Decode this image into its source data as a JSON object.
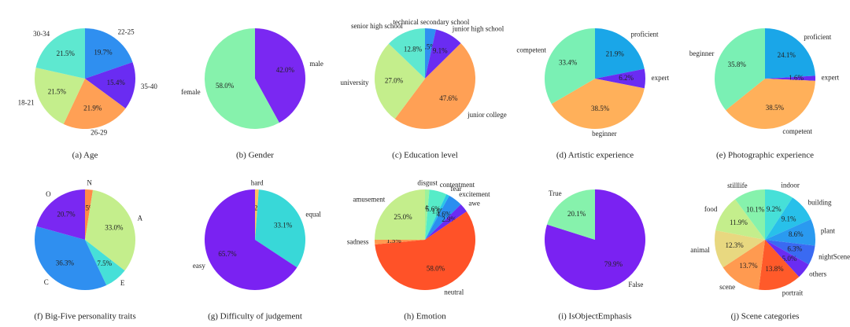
{
  "chart_data": [
    {
      "type": "pie",
      "title": "(a) Age",
      "categories": [
        "22-25",
        "35-40",
        "26-29",
        "18-21",
        "30-34"
      ],
      "values": [
        19.7,
        15.4,
        21.9,
        21.5,
        21.5
      ],
      "value_labels": [
        "19.7%",
        "15.4%",
        "21.9%",
        "21.5%",
        "21.5%"
      ],
      "colors": [
        "#2f8ff0",
        "#6a2cf2",
        "#ffa055",
        "#c4ee8c",
        "#5ee8d0"
      ]
    },
    {
      "type": "pie",
      "title": "(b) Gender",
      "categories": [
        "male",
        "female"
      ],
      "values": [
        42.0,
        58.0
      ],
      "value_labels": [
        "42.0%",
        "58.0%"
      ],
      "colors": [
        "#7a28f2",
        "#86f2ac"
      ]
    },
    {
      "type": "pie",
      "title": "(c) Education level",
      "categories": [
        "technical secondary school",
        "junior high school",
        "junior college",
        "university",
        "senior high school"
      ],
      "values": [
        3.5,
        9.1,
        47.6,
        27.0,
        12.8
      ],
      "value_labels": [
        "3.5%",
        "9.1%",
        "47.6%",
        "27.0%",
        "12.8%"
      ],
      "colors": [
        "#2f8ff0",
        "#6a2cf2",
        "#ffa055",
        "#c4ee8c",
        "#5ee8d0"
      ]
    },
    {
      "type": "pie",
      "title": "(d) Artistic experience",
      "categories": [
        "proficient",
        "expert",
        "beginner",
        "competent"
      ],
      "values": [
        21.9,
        6.2,
        38.5,
        33.4
      ],
      "value_labels": [
        "21.9%",
        "6.2%",
        "38.5%",
        "33.4%"
      ],
      "colors": [
        "#1aa6e8",
        "#6a2cf2",
        "#ffb05a",
        "#7af0b4"
      ]
    },
    {
      "type": "pie",
      "title": "(e) Photographic experience",
      "categories": [
        "proficient",
        "expert",
        "competent",
        "beginner"
      ],
      "values": [
        24.1,
        1.6,
        38.5,
        35.8
      ],
      "value_labels": [
        "24.1%",
        "1.6%",
        "38.5%",
        "35.8%"
      ],
      "colors": [
        "#1aa6e8",
        "#6a2cf2",
        "#ffb05a",
        "#7af0b4"
      ]
    },
    {
      "type": "pie",
      "title": "(f) Big-Five personality traits",
      "categories": [
        "N",
        "A",
        "E",
        "C",
        "O"
      ],
      "values": [
        2.5,
        33.0,
        7.5,
        36.3,
        20.7
      ],
      "value_labels": [
        "2.5%",
        "33.0%",
        "7.5%",
        "36.3%",
        "20.7%"
      ],
      "colors": [
        "#ff8a48",
        "#c4ee8c",
        "#46e0d8",
        "#2f8ff0",
        "#7a28f2"
      ]
    },
    {
      "type": "pie",
      "title": "(g) Difficulty of judgement",
      "categories": [
        "hard",
        "equal",
        "easy"
      ],
      "values": [
        1.2,
        33.1,
        65.7
      ],
      "value_labels": [
        "1.2%",
        "33.1%",
        "65.7%"
      ],
      "colors": [
        "#ffc060",
        "#38d8d8",
        "#7a22f2"
      ]
    },
    {
      "type": "pie",
      "title": "(h) Emotion",
      "categories": [
        "disgust",
        "contentment",
        "fear",
        "excitement",
        "awe",
        "neutral",
        "sadness",
        "amusement"
      ],
      "values": [
        1.4,
        5.6,
        1.0,
        4.6,
        2.9,
        58.0,
        1.5,
        25.0
      ],
      "value_labels": [
        "1.4%",
        "5.6%",
        "1.0%",
        "4.6%",
        "2.9%",
        "58.0%",
        "1.5%",
        "25.0%"
      ],
      "colors": [
        "#9cf29c",
        "#56ecc8",
        "#28c6e8",
        "#2a8ef0",
        "#6a2cf2",
        "#ff5228",
        "#ff9a50",
        "#c4ee8c"
      ]
    },
    {
      "type": "pie",
      "title": "(i) IsObjectEmphasis",
      "categories": [
        "False",
        "True"
      ],
      "values": [
        79.9,
        20.1
      ],
      "value_labels": [
        "79.9%",
        "20.1%"
      ],
      "colors": [
        "#7a22f2",
        "#86f2ac"
      ]
    },
    {
      "type": "pie",
      "title": "(j) Scene categories",
      "categories": [
        "indoor",
        "building",
        "plant",
        "nightScene",
        "others",
        "portrait",
        "scene",
        "animal",
        "food",
        "stilllife"
      ],
      "values": [
        9.2,
        9.1,
        8.6,
        6.3,
        5.0,
        13.8,
        13.7,
        12.3,
        11.9,
        10.1
      ],
      "value_labels": [
        "9.2%",
        "9.1%",
        "8.6%",
        "6.3%",
        "5.0%",
        "13.8%",
        "13.7%",
        "12.3%",
        "11.9%",
        "10.1%"
      ],
      "colors": [
        "#46e0d8",
        "#28c0ea",
        "#2a9af0",
        "#3a6af2",
        "#6a2cf2",
        "#ff5a2a",
        "#ff9a50",
        "#e8d880",
        "#c4ee8c",
        "#86f2ac"
      ]
    }
  ]
}
